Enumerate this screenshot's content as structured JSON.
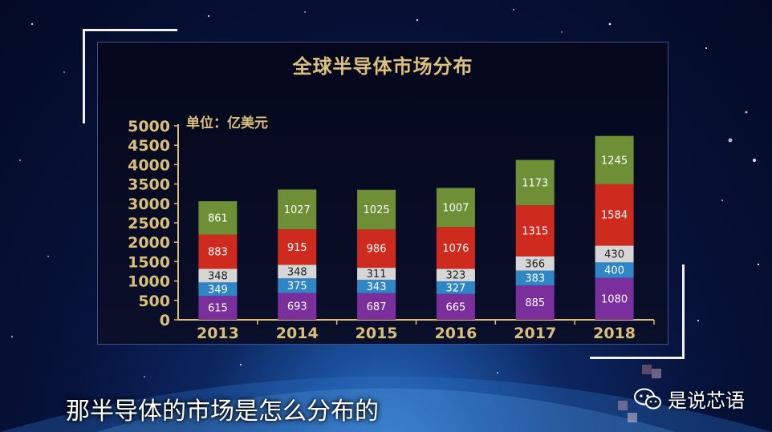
{
  "chart_data": {
    "type": "bar",
    "stacked": true,
    "title": "全球半导体市场分布",
    "unit_label": "单位：亿美元",
    "categories": [
      "2013",
      "2014",
      "2015",
      "2016",
      "2017",
      "2018"
    ],
    "series": [
      {
        "values": [
          615,
          693,
          687,
          665,
          885,
          1080
        ],
        "color": "#7b2f9c"
      },
      {
        "values": [
          349,
          375,
          343,
          327,
          383,
          400
        ],
        "color": "#2f86c7"
      },
      {
        "values": [
          348,
          348,
          311,
          323,
          366,
          430
        ],
        "color": "#d6d6d6"
      },
      {
        "values": [
          883,
          915,
          986,
          1076,
          1315,
          1584
        ],
        "color": "#cf2a1e"
      },
      {
        "values": [
          861,
          1027,
          1025,
          1007,
          1173,
          1245
        ],
        "color": "#6e8f35"
      }
    ],
    "yticks": [
      0,
      500,
      1000,
      1500,
      2000,
      2500,
      3000,
      3500,
      4000,
      4500,
      5000
    ],
    "ylim": [
      0,
      5000
    ],
    "grid": false,
    "axis_color": "#d9bf7a"
  },
  "caption": "那半导体的市场是怎么分布的",
  "watermark": {
    "name": "是说芯语",
    "icon": "wechat-icon"
  }
}
